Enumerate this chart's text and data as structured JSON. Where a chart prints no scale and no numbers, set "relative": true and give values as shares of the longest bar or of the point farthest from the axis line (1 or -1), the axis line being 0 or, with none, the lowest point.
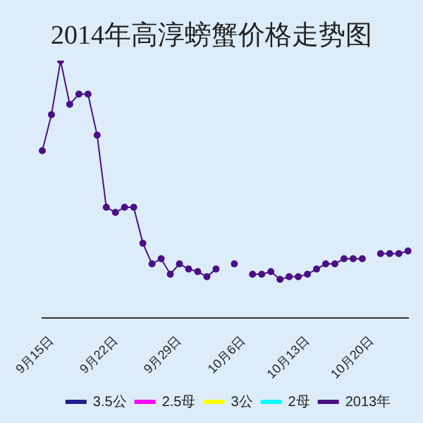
{
  "chart_data": {
    "type": "line",
    "title": "2014年高淳螃蟹价格走势图",
    "relative": true,
    "marker": "circle",
    "legend": "bottom",
    "categories": [
      null,
      "9月15日",
      null,
      null,
      null,
      null,
      null,
      null,
      "9月22日",
      null,
      null,
      null,
      null,
      null,
      null,
      "9月29日",
      null,
      null,
      null,
      null,
      null,
      null,
      "10月6日",
      null,
      null,
      null,
      null,
      null,
      null,
      "10月13日",
      null,
      null,
      null,
      null,
      null,
      null,
      "10月20日",
      null,
      null,
      null,
      null
    ],
    "series": [
      {
        "name": "3.5公",
        "color": "#1f1f8f",
        "values": [
          null,
          null,
          null,
          null,
          null,
          null,
          null,
          null,
          null,
          null,
          null,
          null,
          null,
          null,
          null,
          null,
          null,
          null,
          null,
          null,
          null,
          null,
          null,
          null,
          null,
          null,
          null,
          null,
          null,
          null,
          null,
          null,
          null,
          null,
          null,
          null,
          null,
          null,
          null,
          null,
          null
        ]
      },
      {
        "name": "2.5母",
        "color": "#ff00ff",
        "values": [
          null,
          null,
          null,
          null,
          null,
          null,
          null,
          null,
          null,
          null,
          null,
          null,
          null,
          null,
          null,
          null,
          null,
          null,
          null,
          null,
          null,
          null,
          null,
          null,
          null,
          null,
          null,
          null,
          null,
          null,
          null,
          null,
          null,
          null,
          null,
          null,
          null,
          null,
          null,
          null,
          null
        ]
      },
      {
        "name": "3公",
        "color": "#ffff00",
        "values": [
          null,
          null,
          null,
          null,
          null,
          null,
          null,
          null,
          null,
          null,
          null,
          null,
          null,
          null,
          null,
          null,
          null,
          null,
          null,
          null,
          null,
          null,
          null,
          null,
          null,
          null,
          null,
          null,
          null,
          null,
          null,
          null,
          null,
          null,
          null,
          null,
          null,
          null,
          null,
          null,
          null
        ]
      },
      {
        "name": "2母",
        "color": "#00ffff",
        "values": [
          null,
          null,
          null,
          null,
          null,
          null,
          null,
          null,
          null,
          null,
          null,
          null,
          null,
          null,
          null,
          null,
          null,
          null,
          null,
          null,
          null,
          null,
          null,
          null,
          null,
          null,
          null,
          null,
          null,
          null,
          null,
          null,
          null,
          null,
          null,
          null,
          null,
          null,
          null,
          null,
          null
        ]
      },
      {
        "name": "2013年",
        "color": "#4b0f87",
        "values": [
          0.65,
          0.79,
          1,
          0.83,
          0.87,
          0.87,
          0.71,
          0.43,
          0.41,
          0.43,
          0.43,
          0.29,
          0.21,
          0.23,
          0.17,
          0.21,
          0.19,
          0.18,
          0.16,
          0.19,
          null,
          0.21,
          null,
          0.17,
          0.17,
          0.18,
          0.15,
          0.16,
          0.16,
          0.17,
          0.19,
          0.21,
          0.21,
          0.23,
          0.23,
          0.23,
          null,
          0.25,
          0.25,
          0.25,
          0.26
        ]
      }
    ]
  }
}
